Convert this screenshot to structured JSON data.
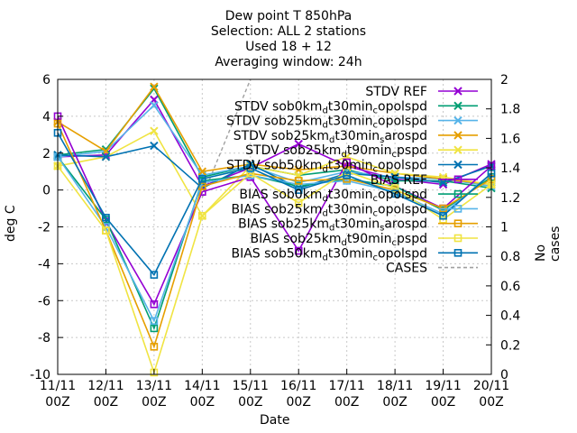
{
  "header": {
    "line1": "Dew point T 850hPa",
    "line2": "Selection: ALL       2 stations",
    "line3": "Used 18 + 12",
    "line4": "Averaging window: 24h"
  },
  "chart_data": {
    "type": "line",
    "xlabel": "Date",
    "ylabel": "deg C",
    "y2label": "No cases",
    "categories": [
      "11/11 00Z",
      "12/11 00Z",
      "13/11 00Z",
      "14/11 00Z",
      "15/11 00Z",
      "16/11 00Z",
      "17/11 00Z",
      "18/11 00Z",
      "19/11 00Z",
      "20/11 00Z"
    ],
    "category_lines": [
      [
        "11/11",
        "00Z"
      ],
      [
        "12/11",
        "00Z"
      ],
      [
        "13/11",
        "00Z"
      ],
      [
        "14/11",
        "00Z"
      ],
      [
        "15/11",
        "00Z"
      ],
      [
        "16/11",
        "00Z"
      ],
      [
        "17/11",
        "00Z"
      ],
      [
        "18/11",
        "00Z"
      ],
      [
        "19/11",
        "00Z"
      ],
      [
        "20/11",
        "00Z"
      ]
    ],
    "ylim": [
      -10,
      6
    ],
    "yticks": [
      6,
      4,
      2,
      0,
      -2,
      -4,
      -6,
      -8,
      -10
    ],
    "y2lim": [
      0,
      2
    ],
    "y2ticks": [
      2,
      1.8,
      1.6,
      1.4,
      1.2,
      1,
      0.8,
      0.6,
      0.4,
      0.2,
      0
    ],
    "grid": true,
    "legend_placement": "top-right",
    "series": [
      {
        "name": "STDV REF",
        "color": "#9400d3",
        "marker": "x",
        "values": [
          1.8,
          1.9,
          4.9,
          0.2,
          1.2,
          2.5,
          1.3,
          0.6,
          0.3,
          1.4
        ]
      },
      {
        "name": "STDV sob0km_dt30min_copolspd",
        "color": "#009e73",
        "marker": "x",
        "values": [
          1.9,
          2.2,
          5.5,
          0.7,
          1.3,
          0.8,
          1.1,
          0.5,
          0.5,
          0.1
        ]
      },
      {
        "name": "STDV sob25km_dt30min_copolspd",
        "color": "#56b4e9",
        "marker": "x",
        "values": [
          1.8,
          2.1,
          4.6,
          0.8,
          1.3,
          0.4,
          1.0,
          0.7,
          0.6,
          0.2
        ]
      },
      {
        "name": "STDV sob25km_dt30min_sarospd",
        "color": "#e69f00",
        "marker": "x",
        "values": [
          3.7,
          2.1,
          5.6,
          1.0,
          1.4,
          1.1,
          1.3,
          0.9,
          0.6,
          0.3
        ]
      },
      {
        "name": "STDV sob25km_dt90min_cpspd",
        "color": "#f0e442",
        "marker": "x",
        "values": [
          1.3,
          1.8,
          3.2,
          -1.4,
          1.3,
          0.8,
          1.8,
          0.9,
          0.7,
          0.3
        ]
      },
      {
        "name": "STDV sob50km_dt30min_copolspd",
        "color": "#0072b2",
        "marker": "x",
        "values": [
          1.9,
          1.8,
          2.4,
          0.1,
          1.4,
          0.1,
          0.9,
          0.7,
          0.4,
          1.3
        ]
      },
      {
        "name": "BIAS REF",
        "color": "#9400d3",
        "marker": "square",
        "values": [
          4.0,
          -1.7,
          -6.2,
          -0.1,
          0.7,
          -3.3,
          1.5,
          0.2,
          -1.0,
          1.3
        ]
      },
      {
        "name": "BIAS sob0km_dt30min_copolspd",
        "color": "#009e73",
        "marker": "square",
        "values": [
          1.8,
          -1.6,
          -7.5,
          0.5,
          0.8,
          0.2,
          0.6,
          0.2,
          -1.1,
          0.7
        ]
      },
      {
        "name": "BIAS sob25km_dt30min_copolspd",
        "color": "#56b4e9",
        "marker": "square",
        "values": [
          1.8,
          -2.0,
          -7.1,
          0.4,
          0.8,
          0.3,
          0.5,
          -0.1,
          -1.3,
          0.9
        ]
      },
      {
        "name": "BIAS sob25km_dt30min_sarospd",
        "color": "#e69f00",
        "marker": "square",
        "values": [
          3.6,
          -2.2,
          -8.5,
          0.2,
          0.9,
          0.5,
          0.6,
          0.0,
          -1.0,
          0.6
        ]
      },
      {
        "name": "BIAS sob25km_dt90min_cpspd",
        "color": "#f0e442",
        "marker": "square",
        "values": [
          1.3,
          -2.2,
          -9.9,
          -1.4,
          0.9,
          -0.7,
          1.0,
          0.1,
          -1.6,
          0.3
        ]
      },
      {
        "name": "BIAS sob50km_dt30min_copolspd",
        "color": "#0072b2",
        "marker": "square",
        "values": [
          3.1,
          -1.5,
          -4.6,
          0.6,
          1.2,
          0.0,
          0.8,
          -0.2,
          -1.4,
          0.9
        ]
      }
    ],
    "cases": {
      "name": "CASES",
      "color": "#a0a0a0",
      "axis": "y2",
      "values": [
        null,
        null,
        null,
        1.2,
        2.0,
        null,
        null,
        null,
        null,
        null
      ]
    }
  },
  "legend_text": [
    {
      "base": "STDV REF"
    },
    {
      "base": "STDV sob0km",
      "sub": "d",
      "rest1": "t30min",
      "sub2": "c",
      "rest2": "opolspd"
    },
    {
      "base": "STDV sob25km",
      "sub": "d",
      "rest1": "t30min",
      "sub2": "c",
      "rest2": "opolspd"
    },
    {
      "base": "STDV sob25km",
      "sub": "d",
      "rest1": "t30min",
      "sub2": "s",
      "rest2": "arospd"
    },
    {
      "base": "STDV sob25km",
      "sub": "d",
      "rest1": "t90min",
      "sub2": "c",
      "rest2": "pspd"
    },
    {
      "base": "STDV sob50km",
      "sub": "d",
      "rest1": "t30min",
      "sub2": "c",
      "rest2": "opolspd"
    },
    {
      "base": "BIAS REF"
    },
    {
      "base": "BIAS sob0km",
      "sub": "d",
      "rest1": "t30min",
      "sub2": "c",
      "rest2": "opolspd"
    },
    {
      "base": "BIAS sob25km",
      "sub": "d",
      "rest1": "t30min",
      "sub2": "c",
      "rest2": "opolspd"
    },
    {
      "base": "BIAS sob25km",
      "sub": "d",
      "rest1": "t30min",
      "sub2": "s",
      "rest2": "arospd"
    },
    {
      "base": "BIAS sob25km",
      "sub": "d",
      "rest1": "t90min",
      "sub2": "c",
      "rest2": "pspd"
    },
    {
      "base": "BIAS sob50km",
      "sub": "d",
      "rest1": "t30min",
      "sub2": "c",
      "rest2": "opolspd"
    },
    {
      "base": "CASES"
    }
  ]
}
